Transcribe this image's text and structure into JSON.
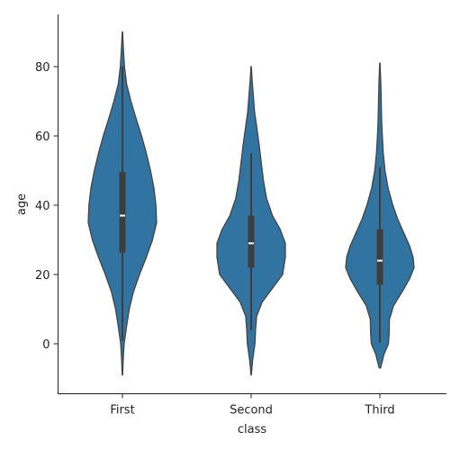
{
  "chart_data": {
    "type": "violin",
    "xlabel": "class",
    "ylabel": "age",
    "categories": [
      "First",
      "Second",
      "Third"
    ],
    "ylim": [
      -14,
      93
    ],
    "yticks": [
      0,
      20,
      40,
      60,
      80
    ],
    "color": "#3274a1",
    "edge_color": "#444444",
    "violins": [
      {
        "category": "First",
        "min": -9,
        "max": 90,
        "q1": 26.3,
        "median": 37,
        "q3": 49.6,
        "whisker_low": 0.9,
        "whisker_high": 80,
        "profile": [
          [
            -9,
            0.006
          ],
          [
            -5,
            0.02
          ],
          [
            0,
            0.05
          ],
          [
            5,
            0.12
          ],
          [
            10,
            0.2
          ],
          [
            15,
            0.32
          ],
          [
            20,
            0.5
          ],
          [
            25,
            0.7
          ],
          [
            30,
            0.88
          ],
          [
            35,
            1.0
          ],
          [
            40,
            0.98
          ],
          [
            45,
            0.92
          ],
          [
            50,
            0.82
          ],
          [
            55,
            0.7
          ],
          [
            60,
            0.56
          ],
          [
            65,
            0.4
          ],
          [
            70,
            0.25
          ],
          [
            75,
            0.12
          ],
          [
            80,
            0.06
          ],
          [
            85,
            0.03
          ],
          [
            90,
            0.006
          ]
        ]
      },
      {
        "category": "Second",
        "min": -9,
        "max": 80,
        "q1": 22,
        "median": 29,
        "q3": 37,
        "whisker_low": 4,
        "whisker_high": 55,
        "profile": [
          [
            -9,
            0.006
          ],
          [
            -5,
            0.04
          ],
          [
            0,
            0.11
          ],
          [
            4,
            0.13
          ],
          [
            8,
            0.16
          ],
          [
            12,
            0.32
          ],
          [
            16,
            0.62
          ],
          [
            20,
            0.92
          ],
          [
            25,
            1.0
          ],
          [
            29,
            1.0
          ],
          [
            33,
            0.85
          ],
          [
            37,
            0.62
          ],
          [
            42,
            0.45
          ],
          [
            47,
            0.36
          ],
          [
            52,
            0.3
          ],
          [
            57,
            0.24
          ],
          [
            62,
            0.17
          ],
          [
            67,
            0.1
          ],
          [
            72,
            0.06
          ],
          [
            76,
            0.03
          ],
          [
            80,
            0.006
          ]
        ]
      },
      {
        "category": "Third",
        "min": -7,
        "max": 81,
        "q1": 17,
        "median": 24,
        "q3": 33,
        "whisker_low": 0.4,
        "whisker_high": 51,
        "profile": [
          [
            -7,
            0.02
          ],
          [
            -3,
            0.12
          ],
          [
            0,
            0.25
          ],
          [
            3,
            0.27
          ],
          [
            7,
            0.28
          ],
          [
            11,
            0.4
          ],
          [
            15,
            0.65
          ],
          [
            19,
            0.88
          ],
          [
            22,
            1.0
          ],
          [
            25,
            0.97
          ],
          [
            28,
            0.88
          ],
          [
            32,
            0.7
          ],
          [
            36,
            0.52
          ],
          [
            40,
            0.38
          ],
          [
            45,
            0.24
          ],
          [
            50,
            0.15
          ],
          [
            55,
            0.1
          ],
          [
            60,
            0.07
          ],
          [
            65,
            0.05
          ],
          [
            70,
            0.04
          ],
          [
            75,
            0.03
          ],
          [
            81,
            0.006
          ]
        ]
      }
    ]
  }
}
